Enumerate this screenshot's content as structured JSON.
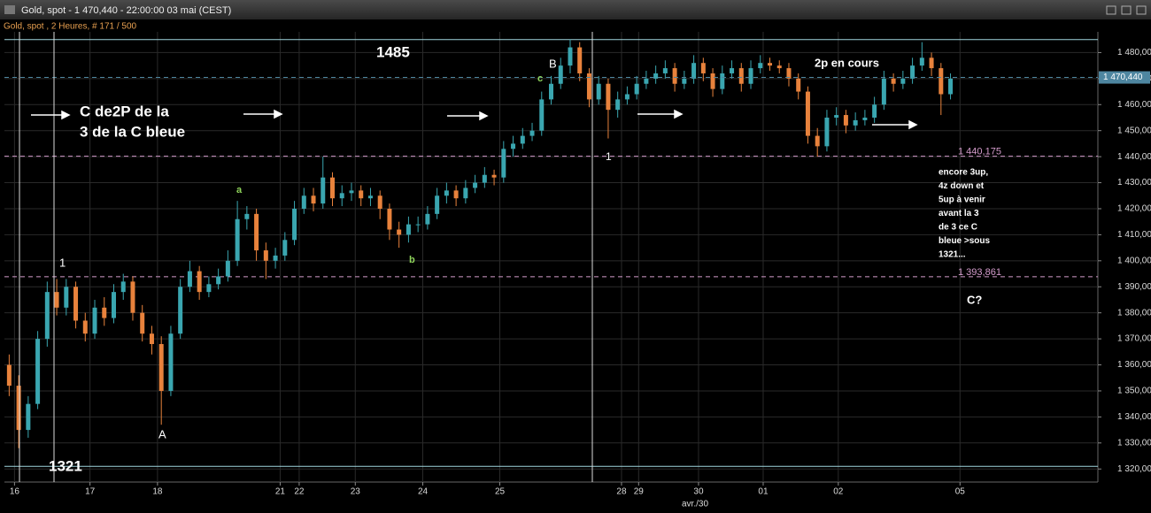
{
  "window": {
    "title": "Gold, spot - 1 470,440 - 22:00:00  03 mai (CEST)",
    "subtitle": "Gold, spot , 2 Heures, # 171 / 500"
  },
  "chart_data": {
    "type": "candlestick",
    "open": [
      1360,
      1352,
      1335,
      1345,
      1370,
      1388,
      1382,
      1390,
      1377,
      1372,
      1382,
      1378,
      1388,
      1392,
      1380,
      1372,
      1368,
      1350,
      1372,
      1390,
      1396,
      1388,
      1391,
      1394,
      1400,
      1416,
      1418,
      1404,
      1400,
      1402,
      1408,
      1420,
      1425,
      1422,
      1432,
      1424,
      1426,
      1427,
      1424,
      1425,
      1420,
      1412,
      1410,
      1414,
      1414,
      1418,
      1425,
      1427,
      1424,
      1428,
      1430,
      1433,
      1432,
      1443,
      1445,
      1448,
      1450,
      1462,
      1468,
      1475,
      1482,
      1472,
      1462,
      1468,
      1458,
      1462,
      1464,
      1468,
      1470,
      1472,
      1474,
      1468,
      1470,
      1476,
      1472,
      1466,
      1472,
      1474,
      1468,
      1474,
      1476,
      1475,
      1474,
      1470,
      1465,
      1448,
      1444,
      1455,
      1456,
      1452,
      1454,
      1455,
      1460,
      1470,
      1468,
      1470,
      1475,
      1478,
      1474,
      1464
    ],
    "high": [
      1364,
      1356,
      1348,
      1373,
      1392,
      1393,
      1393,
      1392,
      1380,
      1385,
      1386,
      1391,
      1395,
      1394,
      1383,
      1375,
      1371,
      1375,
      1393,
      1400,
      1398,
      1394,
      1397,
      1404,
      1423,
      1421,
      1420,
      1407,
      1405,
      1411,
      1423,
      1428,
      1428,
      1440,
      1434,
      1429,
      1430,
      1429,
      1428,
      1427,
      1422,
      1415,
      1417,
      1417,
      1421,
      1428,
      1430,
      1429,
      1431,
      1433,
      1436,
      1435,
      1446,
      1448,
      1451,
      1453,
      1465,
      1471,
      1478,
      1485,
      1484,
      1474,
      1471,
      1470,
      1465,
      1467,
      1471,
      1473,
      1475,
      1477,
      1476,
      1473,
      1479,
      1478,
      1474,
      1475,
      1477,
      1476,
      1477,
      1479,
      1478,
      1477,
      1476,
      1472,
      1467,
      1451,
      1458,
      1459,
      1458,
      1457,
      1458,
      1463,
      1473,
      1472,
      1473,
      1478,
      1484,
      1480,
      1476,
      1472
    ],
    "low": [
      1348,
      1328,
      1332,
      1343,
      1367,
      1379,
      1379,
      1374,
      1369,
      1370,
      1375,
      1376,
      1385,
      1377,
      1369,
      1364,
      1337,
      1348,
      1370,
      1388,
      1385,
      1386,
      1389,
      1392,
      1398,
      1412,
      1400,
      1393,
      1397,
      1400,
      1406,
      1418,
      1419,
      1420,
      1421,
      1421,
      1423,
      1421,
      1421,
      1416,
      1408,
      1405,
      1407,
      1411,
      1412,
      1416,
      1422,
      1421,
      1422,
      1426,
      1428,
      1429,
      1430,
      1440,
      1443,
      1446,
      1448,
      1460,
      1466,
      1472,
      1469,
      1459,
      1460,
      1447,
      1455,
      1460,
      1462,
      1466,
      1468,
      1470,
      1465,
      1466,
      1468,
      1469,
      1463,
      1464,
      1470,
      1465,
      1466,
      1472,
      1473,
      1472,
      1467,
      1462,
      1445,
      1440,
      1442,
      1452,
      1449,
      1450,
      1452,
      1453,
      1458,
      1465,
      1466,
      1468,
      1473,
      1471,
      1456,
      1462
    ],
    "close": [
      1352,
      1335,
      1345,
      1370,
      1388,
      1382,
      1390,
      1377,
      1372,
      1382,
      1378,
      1388,
      1392,
      1380,
      1372,
      1368,
      1350,
      1372,
      1390,
      1396,
      1388,
      1391,
      1394,
      1400,
      1416,
      1418,
      1404,
      1400,
      1402,
      1408,
      1420,
      1425,
      1422,
      1432,
      1424,
      1426,
      1427,
      1424,
      1425,
      1420,
      1412,
      1410,
      1414,
      1414,
      1418,
      1425,
      1427,
      1424,
      1428,
      1430,
      1433,
      1432,
      1443,
      1445,
      1448,
      1450,
      1462,
      1468,
      1475,
      1482,
      1472,
      1462,
      1468,
      1458,
      1462,
      1464,
      1468,
      1470,
      1472,
      1474,
      1468,
      1470,
      1476,
      1472,
      1466,
      1472,
      1474,
      1468,
      1474,
      1476,
      1475,
      1474,
      1470,
      1465,
      1448,
      1444,
      1455,
      1456,
      1452,
      1454,
      1455,
      1460,
      1470,
      1468,
      1470,
      1475,
      1478,
      1474,
      1464,
      1470
    ],
    "up_color": "#3aa6b0",
    "down_color": "#e8823c",
    "xlim": [
      -0.5,
      114.5
    ],
    "xticks": [
      {
        "value": 0.56,
        "label": "16"
      },
      {
        "value": 8.5,
        "label": "17"
      },
      {
        "value": 15.6,
        "label": "18"
      },
      {
        "value": 28.5,
        "label": "21"
      },
      {
        "value": 30.5,
        "label": "22"
      },
      {
        "value": 36.4,
        "label": "23"
      },
      {
        "value": 43.5,
        "label": "24"
      },
      {
        "value": 51.6,
        "label": "25"
      },
      {
        "value": 64.4,
        "label": "28"
      },
      {
        "value": 66.2,
        "label": "29"
      },
      {
        "value": 72.5,
        "label": "30"
      },
      {
        "value": 79.3,
        "label": "01"
      },
      {
        "value": 87.2,
        "label": "02"
      },
      {
        "value": 100,
        "label": "05"
      }
    ],
    "x_axis_label": "avr./30",
    "ylim": [
      1316,
      1490
    ],
    "yticks": [
      {
        "value": 1320,
        "label": "1 320,000"
      },
      {
        "value": 1330,
        "label": "1 330,000"
      },
      {
        "value": 1340,
        "label": "1 340,000"
      },
      {
        "value": 1350,
        "label": "1 350,000"
      },
      {
        "value": 1360,
        "label": "1 360,000"
      },
      {
        "value": 1370,
        "label": "1 370,000"
      },
      {
        "value": 1380,
        "label": "1 380,000"
      },
      {
        "value": 1390,
        "label": "1 390,000"
      },
      {
        "value": 1400,
        "label": "1 400,000"
      },
      {
        "value": 1410,
        "label": "1 410,000"
      },
      {
        "value": 1420,
        "label": "1 420,000"
      },
      {
        "value": 1430,
        "label": "1 430,000"
      },
      {
        "value": 1440,
        "label": "1 440,000"
      },
      {
        "value": 1450,
        "label": "1 450,000"
      },
      {
        "value": 1460,
        "label": "1 460,000"
      },
      {
        "value": 1470,
        "label": "1 470,000"
      },
      {
        "value": 1480,
        "label": "1 480,000"
      }
    ],
    "grid": true,
    "lines": [
      {
        "value": 1485,
        "color": "#9fd6de"
      },
      {
        "value": 1321,
        "color": "#9fd6de"
      }
    ],
    "price_line": {
      "value": 1470.44,
      "label": "1 470,440",
      "color": "#4e86a0"
    },
    "levels": [
      {
        "value": 1440.175,
        "label": "1 440,175",
        "color": "#d49ccc"
      },
      {
        "value": 1393.861,
        "label": "1 393,861",
        "color": "#d49ccc"
      }
    ],
    "annotations": [
      "1485",
      "C de2P de la",
      "3 de la C bleue",
      "1",
      "A",
      "1321",
      "a",
      "b",
      "c",
      "B",
      "1",
      "2p en cours",
      "C?"
    ],
    "note": [
      "encore 3up,",
      "4z down et",
      "5up à venir",
      "avant la 3",
      "de 3 ce C",
      "bleue >sous",
      "1321..."
    ]
  }
}
